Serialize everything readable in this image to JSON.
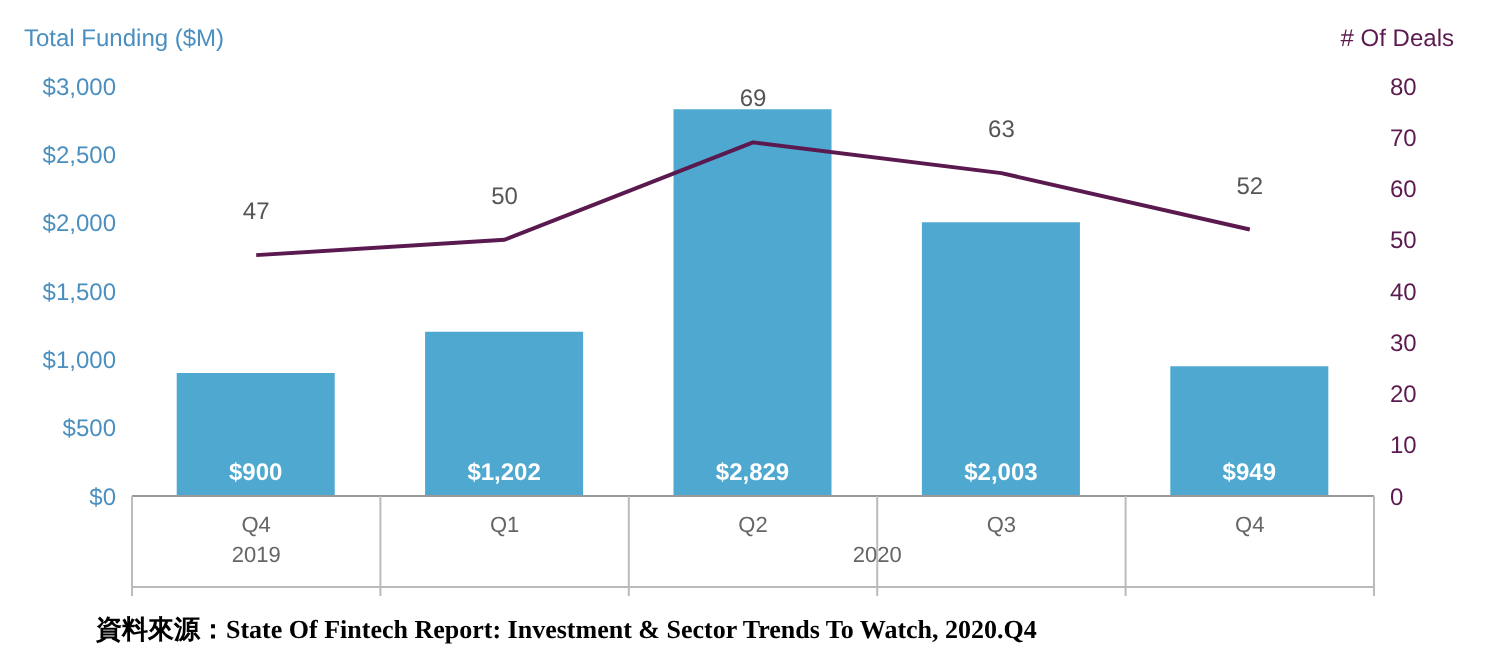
{
  "chart_data": {
    "type": "bar",
    "ylabel": "Total Funding ($M)",
    "y2label": "# Of Deals",
    "categories": [
      "Q4",
      "Q1",
      "Q2",
      "Q3",
      "Q4"
    ],
    "series": [
      {
        "color": "#4fa8d0",
        "values": [
          900,
          1202,
          2829,
          2003,
          949
        ],
        "value_labels": [
          "$900",
          "$1,202",
          "$2,829",
          "$2,003",
          "$949"
        ]
      },
      {
        "type": "line",
        "axis": "y2",
        "color": "#5b1a4f",
        "values": [
          47,
          50,
          69,
          63,
          52
        ],
        "value_labels": [
          "47",
          "50",
          "69",
          "63",
          "52"
        ]
      }
    ],
    "ylim": [
      0,
      3000
    ],
    "yticks": [
      {
        "value": 0,
        "label": "$0"
      },
      {
        "value": 500,
        "label": "$500"
      },
      {
        "value": 1000,
        "label": "$1,000"
      },
      {
        "value": 1500,
        "label": "$1,500"
      },
      {
        "value": 2000,
        "label": "$2,000"
      },
      {
        "value": 2500,
        "label": "$2,500"
      },
      {
        "value": 3000,
        "label": "$3,000"
      }
    ],
    "y2lim": [
      0,
      80
    ],
    "y2ticks": [
      0,
      10,
      20,
      30,
      40,
      50,
      60,
      70,
      80
    ],
    "grid": false,
    "legend": false,
    "marker": "none",
    "line_style": "solid",
    "annotations": [
      "2019",
      "2020",
      "資料來源：State Of Fintech Report: Investment & Sector Trends To Watch, 2020.Q4"
    ]
  }
}
